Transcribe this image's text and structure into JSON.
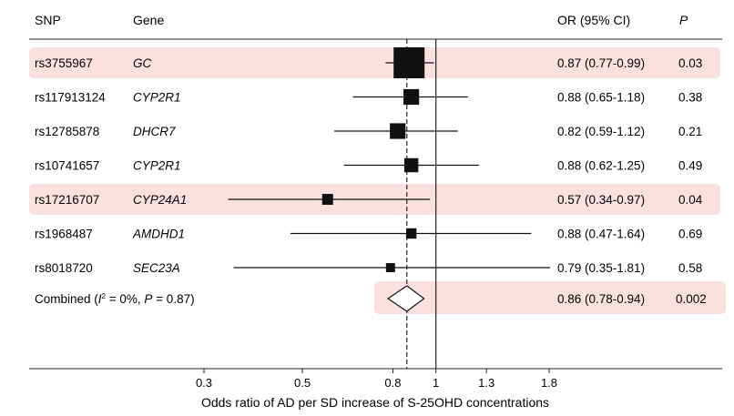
{
  "headers": {
    "snp": "SNP",
    "gene": "Gene",
    "or_ci": "OR (95% CI)",
    "p": "P"
  },
  "chart_data": {
    "type": "forest",
    "xlabel": "Odds ratio of AD per SD increase of S-25OHD concentrations",
    "x_scale": "log",
    "xlim": [
      0.21,
      2.5
    ],
    "x_ticks": [
      0.3,
      0.5,
      0.8,
      1,
      1.3,
      1.8
    ],
    "x_tick_labels": [
      "0.3",
      "0.5",
      "0.8",
      "1",
      "1.3",
      "1.8"
    ],
    "reference_line": 1,
    "combined_line": 0.86,
    "highlight_color": "#fbe0e0",
    "rows": [
      {
        "snp": "rs3755967",
        "gene": "GC",
        "or": 0.87,
        "lo": 0.77,
        "hi": 0.99,
        "or_ci": "0.87 (0.77-0.99)",
        "p": "0.03",
        "weight": 1.0,
        "highlight": true
      },
      {
        "snp": "rs117913124",
        "gene": "CYP2R1",
        "or": 0.88,
        "lo": 0.65,
        "hi": 1.18,
        "or_ci": "0.88 (0.65-1.18)",
        "p": "0.38",
        "weight": 0.42,
        "highlight": false
      },
      {
        "snp": "rs12785878",
        "gene": "DHCR7",
        "or": 0.82,
        "lo": 0.59,
        "hi": 1.12,
        "or_ci": "0.82 (0.59-1.12)",
        "p": "0.21",
        "weight": 0.42,
        "highlight": false
      },
      {
        "snp": "rs10741657",
        "gene": "CYP2R1",
        "or": 0.88,
        "lo": 0.62,
        "hi": 1.25,
        "or_ci": "0.88 (0.62-1.25)",
        "p": "0.49",
        "weight": 0.36,
        "highlight": false
      },
      {
        "snp": "rs17216707",
        "gene": "CYP24A1",
        "or": 0.57,
        "lo": 0.34,
        "hi": 0.97,
        "or_ci": "0.57 (0.34-0.97)",
        "p": "0.04",
        "weight": 0.24,
        "highlight": true
      },
      {
        "snp": "rs1968487",
        "gene": "AMDHD1",
        "or": 0.88,
        "lo": 0.47,
        "hi": 1.64,
        "or_ci": "0.88 (0.47-1.64)",
        "p": "0.69",
        "weight": 0.22,
        "highlight": false
      },
      {
        "snp": "rs8018720",
        "gene": "SEC23A",
        "or": 0.79,
        "lo": 0.35,
        "hi": 1.81,
        "or_ci": "0.79 (0.35-1.81)",
        "p": "0.58",
        "weight": 0.17,
        "highlight": false
      }
    ],
    "combined": {
      "label_prefix": "Combined (",
      "i2_symbol": "I",
      "i2_superscript": "2",
      "label_mid": " = 0%, ",
      "p_symbol": "P",
      "label_suffix": " = 0.87)",
      "or": 0.86,
      "lo": 0.78,
      "hi": 0.94,
      "or_ci": "0.86 (0.78-0.94)",
      "p": "0.002",
      "highlight": true
    }
  }
}
